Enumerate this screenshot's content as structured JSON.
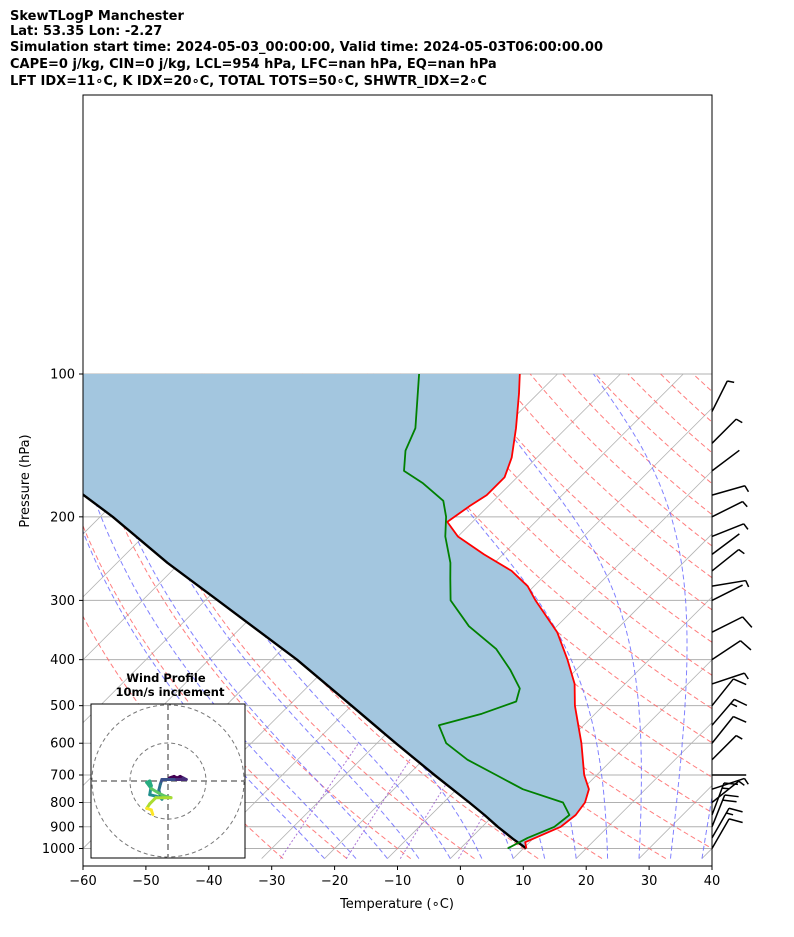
{
  "header": {
    "line1": "SkewTLogP Manchester",
    "line2": "Lat: 53.35   Lon: -2.27",
    "line3": "Simulation start time: 2024-05-03_00:00:00, Valid time: 2024-05-03T06:00:00.00",
    "line4": "CAPE=0 j/kg, CIN=0 j/kg, LCL=954 hPa, LFC=nan hPa, EQ=nan hPa",
    "line5": "LFT IDX=11∘C, K IDX=20∘C, TOTAL TOTS=50∘C, SHWTR_IDX=2∘C"
  },
  "colors": {
    "temperature": "#ff0000",
    "dewpoint": "#008000",
    "parcel": "#000000",
    "shade": "#a3c6df",
    "dry_adiabat": "#ff6666",
    "moist_adiabat": "#6b6bff",
    "mixing_ratio": "#9955cc",
    "isotherm": "#b3b3b3"
  },
  "chart_data": {
    "type": "line",
    "skew": 35,
    "xlabel": "Temperature (∘C)",
    "ylabel": "Pressure (hPa)",
    "xlim": [
      -60,
      40
    ],
    "ylim": [
      1050,
      100
    ],
    "y_scale": "log",
    "xticks": [
      -60,
      -50,
      -40,
      -30,
      -20,
      -10,
      0,
      10,
      20,
      30,
      40
    ],
    "yticks": [
      1000,
      900,
      800,
      700,
      600,
      500,
      400,
      300,
      200,
      100
    ],
    "grid": true,
    "series": [
      {
        "key": "temperature",
        "points": [
          [
            1000,
            10.5
          ],
          [
            970,
            9.3
          ],
          [
            950,
            10.2
          ],
          [
            900,
            12.5
          ],
          [
            850,
            13.0
          ],
          [
            800,
            12.5
          ],
          [
            750,
            11.0
          ],
          [
            700,
            8.0
          ],
          [
            600,
            2.5
          ],
          [
            500,
            -4.5
          ],
          [
            450,
            -8.0
          ],
          [
            400,
            -13.0
          ],
          [
            350,
            -19.0
          ],
          [
            300,
            -27.5
          ],
          [
            280,
            -31.0
          ],
          [
            260,
            -36.0
          ],
          [
            240,
            -43.0
          ],
          [
            220,
            -50.0
          ],
          [
            205,
            -54.0
          ],
          [
            190,
            -53.0
          ],
          [
            180,
            -52.0
          ],
          [
            165,
            -52.0
          ],
          [
            150,
            -54.0
          ],
          [
            130,
            -58.0
          ],
          [
            110,
            -63.0
          ],
          [
            100,
            -66.0
          ]
        ]
      },
      {
        "key": "dewpoint",
        "points": [
          [
            1000,
            7.5
          ],
          [
            950,
            9.0
          ],
          [
            900,
            11.5
          ],
          [
            850,
            12.0
          ],
          [
            800,
            9.0
          ],
          [
            750,
            0.5
          ],
          [
            700,
            -6.0
          ],
          [
            650,
            -13.0
          ],
          [
            600,
            -19.0
          ],
          [
            550,
            -23.0
          ],
          [
            520,
            -18.0
          ],
          [
            490,
            -14.5
          ],
          [
            460,
            -16.0
          ],
          [
            420,
            -20.5
          ],
          [
            380,
            -26.0
          ],
          [
            340,
            -34.0
          ],
          [
            300,
            -41.0
          ],
          [
            270,
            -44.5
          ],
          [
            250,
            -47.0
          ],
          [
            220,
            -52.0
          ],
          [
            200,
            -55.0
          ],
          [
            185,
            -58.0
          ],
          [
            170,
            -64.0
          ],
          [
            160,
            -69.0
          ],
          [
            145,
            -72.0
          ],
          [
            130,
            -74.0
          ],
          [
            100,
            -82.0
          ]
        ]
      },
      {
        "key": "parcel",
        "points": [
          [
            1000,
            10.5
          ],
          [
            954,
            6.8
          ],
          [
            900,
            2.5
          ],
          [
            850,
            -1.5
          ],
          [
            800,
            -5.9
          ],
          [
            700,
            -15.8
          ],
          [
            600,
            -27.0
          ],
          [
            500,
            -40.0
          ],
          [
            400,
            -56.0
          ],
          [
            300,
            -78.0
          ],
          [
            250,
            -92.0
          ],
          [
            200,
            -108.0
          ],
          [
            150,
            -130.0
          ],
          [
            100,
            -165.0
          ]
        ]
      }
    ],
    "wind_barbs": [
      {
        "p": 1000,
        "u": 3.0,
        "v": 5.2
      },
      {
        "p": 950,
        "u": 5.0,
        "v": 8.7
      },
      {
        "p": 900,
        "u": 4.0,
        "v": 10.0
      },
      {
        "p": 850,
        "u": 3.0,
        "v": 8.0
      },
      {
        "p": 800,
        "u": 2.5,
        "v": 2.0
      },
      {
        "p": 750,
        "u": 3.0,
        "v": 1.0
      },
      {
        "p": 700,
        "u": 1.0,
        "v": 0.0
      },
      {
        "p": 650,
        "u": 2.0,
        "v": 2.0
      },
      {
        "p": 600,
        "u": 4.0,
        "v": 5.0
      },
      {
        "p": 550,
        "u": 6.0,
        "v": 7.0
      },
      {
        "p": 500,
        "u": 4.0,
        "v": 5.0
      },
      {
        "p": 450,
        "u": 3.0,
        "v": 1.0
      },
      {
        "p": 400,
        "u": 6.0,
        "v": 4.0
      },
      {
        "p": 350,
        "u": 5.0,
        "v": 2.5
      },
      {
        "p": 300,
        "u": 2.0,
        "v": 1.0
      },
      {
        "p": 280,
        "u": 3.0,
        "v": 0.5
      },
      {
        "p": 260,
        "u": 2.5,
        "v": 2.0
      },
      {
        "p": 240,
        "u": 2.0,
        "v": 1.5
      },
      {
        "p": 220,
        "u": 2.5,
        "v": 1.0
      },
      {
        "p": 200,
        "u": 3.0,
        "v": 1.5
      },
      {
        "p": 180,
        "u": 3.5,
        "v": 1.0
      },
      {
        "p": 160,
        "u": 2.0,
        "v": 1.5
      },
      {
        "p": 140,
        "u": 2.0,
        "v": 2.0
      },
      {
        "p": 120,
        "u": 1.5,
        "v": 3.0
      }
    ],
    "hodograph": {
      "title": "Wind Profile",
      "subtitle": "10m/s increment",
      "rings": [
        10,
        20,
        30,
        40,
        50
      ],
      "points": [
        [
          0.5,
          -1.0
        ],
        [
          2.0,
          -1.5
        ],
        [
          3.0,
          -1.0
        ],
        [
          4.0,
          -1.5
        ],
        [
          5.0,
          -1.0
        ],
        [
          6.0,
          -0.5
        ],
        [
          4.0,
          -0.5
        ],
        [
          2.0,
          -0.5
        ],
        [
          0.0,
          -0.5
        ],
        [
          -2.0,
          -0.5
        ],
        [
          -2.5,
          1.0
        ],
        [
          -3.0,
          3.0
        ],
        [
          -2.5,
          5.0
        ],
        [
          -2.0,
          6.0
        ],
        [
          -2.5,
          5.5
        ],
        [
          -4.0,
          5.0
        ],
        [
          -6.0,
          4.5
        ],
        [
          -5.5,
          1.5
        ],
        [
          -6.0,
          0.0
        ],
        [
          -7.0,
          0.5
        ],
        [
          -5.5,
          2.5
        ],
        [
          -3.0,
          4.0
        ],
        [
          -1.0,
          5.0
        ],
        [
          1.0,
          5.5
        ],
        [
          -4.0,
          5.5
        ],
        [
          -6.0,
          7.5
        ],
        [
          -7.0,
          9.0
        ],
        [
          -5.5,
          9.5
        ],
        [
          -5.0,
          11.0
        ]
      ]
    }
  }
}
